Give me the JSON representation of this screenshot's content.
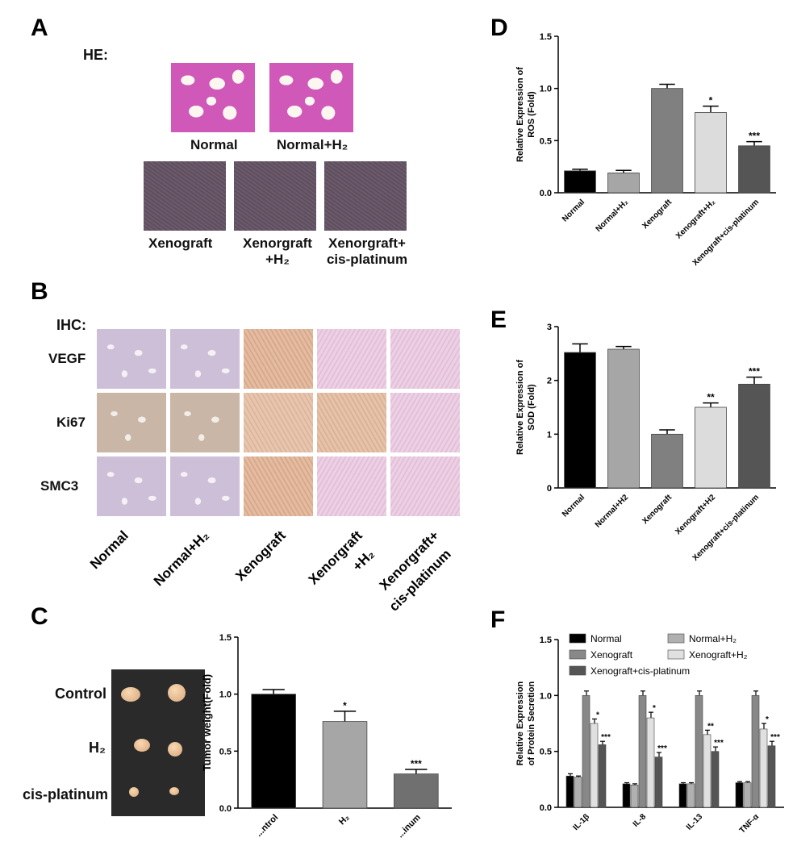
{
  "panelA": {
    "letter": "A",
    "stain": "HE:",
    "images": [
      {
        "label": "Normal"
      },
      {
        "label": "Normal+H₂"
      },
      {
        "label": "Xenograft"
      },
      {
        "label_line1": "Xenorgraft",
        "label_line2": "+H₂"
      },
      {
        "label_line1": "Xenorgraft+",
        "label_line2": "cis-platinum"
      }
    ]
  },
  "panelB": {
    "letter": "B",
    "stain": "IHC:",
    "rows": [
      "VEGF",
      "Ki67",
      "SMC3"
    ],
    "cols": [
      "Normal",
      "Normal+H₂",
      "Xenograft",
      "Xenorgraft\n+H₂",
      "Xenorgraft+\ncis-platinum"
    ]
  },
  "panelC": {
    "letter": "C",
    "rows": [
      "Control",
      "H₂",
      "cis-platinum"
    ]
  },
  "panelD": {
    "letter": "D"
  },
  "panelE": {
    "letter": "E"
  },
  "panelF": {
    "letter": "F"
  },
  "chart_data": [
    {
      "id": "C",
      "type": "bar",
      "categories": [
        "Control",
        "H₂",
        "cis-platinum"
      ],
      "tick_labels": [
        "...ntrol",
        "H₂",
        "...inum"
      ],
      "values": [
        1.0,
        0.76,
        0.3
      ],
      "errors": [
        0.04,
        0.09,
        0.04
      ],
      "significance": [
        "",
        "*",
        "***"
      ],
      "colors": [
        "#000000",
        "#a6a6a6",
        "#707070"
      ],
      "ylabel": "Tumor weight(Fold)",
      "ylim": [
        0,
        1.5
      ],
      "yticks": [
        "0.0",
        "0.5",
        "1.0",
        "1.5"
      ]
    },
    {
      "id": "D",
      "type": "bar",
      "categories": [
        "Normal",
        "Normal+H₂",
        "Xenograft",
        "Xenograft+H₂",
        "Xenograft+cis-platinum"
      ],
      "values": [
        0.21,
        0.19,
        1.0,
        0.77,
        0.45
      ],
      "errors": [
        0.015,
        0.025,
        0.04,
        0.06,
        0.04
      ],
      "significance": [
        "",
        "",
        "",
        "*",
        "***"
      ],
      "colors": [
        "#000000",
        "#a6a6a6",
        "#808080",
        "#dcdcdc",
        "#555555"
      ],
      "ylabel_line1": "Relative Expression of",
      "ylabel_line2": "ROS (Fold)",
      "ylim": [
        0,
        1.5
      ],
      "yticks": [
        "0.0",
        "0.5",
        "1.0",
        "1.5"
      ]
    },
    {
      "id": "E",
      "type": "bar",
      "categories": [
        "Normal",
        "Normal+H2",
        "Xenograft",
        "Xenograft+H2",
        "Xenograft+cis-platinum"
      ],
      "values": [
        2.52,
        2.58,
        1.0,
        1.5,
        1.93
      ],
      "errors": [
        0.16,
        0.05,
        0.08,
        0.08,
        0.13
      ],
      "significance": [
        "",
        "",
        "",
        "**",
        "***"
      ],
      "colors": [
        "#000000",
        "#a6a6a6",
        "#808080",
        "#dcdcdc",
        "#555555"
      ],
      "ylabel_line1": "Relative Expression of",
      "ylabel_line2": "SOD (Fold)",
      "ylim": [
        0,
        3
      ],
      "yticks": [
        "0",
        "1",
        "2",
        "3"
      ]
    },
    {
      "id": "F",
      "type": "bar",
      "categories": [
        "IL-1β",
        "IL-8",
        "IL-13",
        "TNF-α"
      ],
      "tick_labels": [
        "IL-1β",
        "IL-8",
        "IL-13",
        "TNF-α"
      ],
      "series": [
        {
          "name": "Normal",
          "color": "#000000",
          "values": [
            0.28,
            0.21,
            0.21,
            0.22
          ],
          "errors": [
            0.02,
            0.01,
            0.01,
            0.01
          ],
          "significance": [
            "",
            "",
            "",
            ""
          ]
        },
        {
          "name": "Normal+H₂",
          "color": "#b0b0b0",
          "values": [
            0.27,
            0.2,
            0.21,
            0.22
          ],
          "errors": [
            0.01,
            0.01,
            0.01,
            0.01
          ],
          "significance": [
            "",
            "",
            "",
            ""
          ]
        },
        {
          "name": "Xenograft",
          "color": "#888888",
          "values": [
            1.0,
            1.0,
            1.0,
            1.0
          ],
          "errors": [
            0.04,
            0.04,
            0.04,
            0.04
          ],
          "significance": [
            "",
            "",
            "",
            ""
          ]
        },
        {
          "name": "Xenograft+H₂",
          "color": "#e0e0e0",
          "values": [
            0.75,
            0.8,
            0.65,
            0.7
          ],
          "errors": [
            0.04,
            0.05,
            0.04,
            0.05
          ],
          "significance": [
            "*",
            "*",
            "**",
            "*"
          ]
        },
        {
          "name": "Xenograft+cis-platinum",
          "color": "#555555",
          "values": [
            0.56,
            0.45,
            0.5,
            0.55
          ],
          "errors": [
            0.03,
            0.04,
            0.04,
            0.04
          ],
          "significance": [
            "***",
            "***",
            "***",
            "***"
          ]
        }
      ],
      "ylabel_line1": "Relative Expression",
      "ylabel_line2": "of Protein Secretion",
      "ylim": [
        0,
        1.5
      ],
      "yticks": [
        "0.0",
        "0.5",
        "1.0",
        "1.5"
      ],
      "legend": "top"
    }
  ]
}
